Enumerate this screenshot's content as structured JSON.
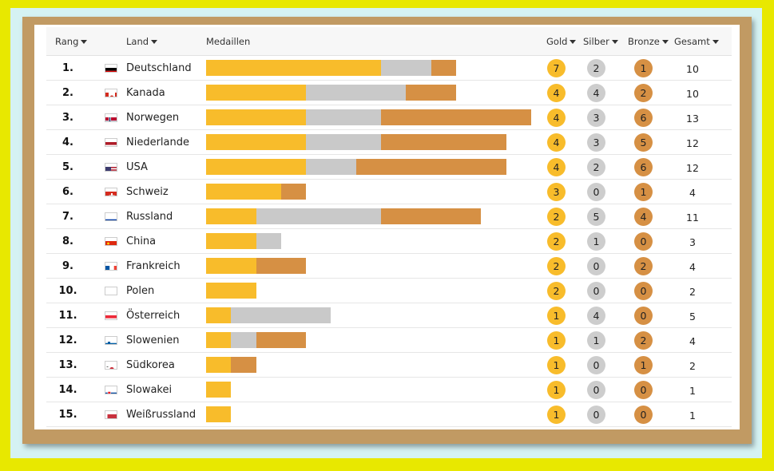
{
  "header": {
    "rang": "Rang",
    "land": "Land",
    "medaillen": "Medaillen",
    "gold": "Gold",
    "silber": "Silber",
    "bronze": "Bronze",
    "gesamt": "Gesamt"
  },
  "colors": {
    "gold": "#f8bc2b",
    "silver": "#c9c9c9",
    "bronze": "#d69044"
  },
  "rows": [
    {
      "rank": "1.",
      "country": "Deutschland",
      "flag": "germany-flag-icon",
      "gold": 7,
      "silver": 2,
      "bronze": 1,
      "total": 10
    },
    {
      "rank": "2.",
      "country": "Kanada",
      "flag": "canada-flag-icon",
      "gold": 4,
      "silver": 4,
      "bronze": 2,
      "total": 10
    },
    {
      "rank": "3.",
      "country": "Norwegen",
      "flag": "norway-flag-icon",
      "gold": 4,
      "silver": 3,
      "bronze": 6,
      "total": 13
    },
    {
      "rank": "4.",
      "country": "Niederlande",
      "flag": "netherlands-flag-icon",
      "gold": 4,
      "silver": 3,
      "bronze": 5,
      "total": 12
    },
    {
      "rank": "5.",
      "country": "USA",
      "flag": "usa-flag-icon",
      "gold": 4,
      "silver": 2,
      "bronze": 6,
      "total": 12
    },
    {
      "rank": "6.",
      "country": "Schweiz",
      "flag": "switzerland-flag-icon",
      "gold": 3,
      "silver": 0,
      "bronze": 1,
      "total": 4
    },
    {
      "rank": "7.",
      "country": "Russland",
      "flag": "russia-flag-icon",
      "gold": 2,
      "silver": 5,
      "bronze": 4,
      "total": 11
    },
    {
      "rank": "8.",
      "country": "China",
      "flag": "china-flag-icon",
      "gold": 2,
      "silver": 1,
      "bronze": 0,
      "total": 3
    },
    {
      "rank": "9.",
      "country": "Frankreich",
      "flag": "france-flag-icon",
      "gold": 2,
      "silver": 0,
      "bronze": 2,
      "total": 4
    },
    {
      "rank": "10.",
      "country": "Polen",
      "flag": "poland-flag-icon",
      "gold": 2,
      "silver": 0,
      "bronze": 0,
      "total": 2
    },
    {
      "rank": "11.",
      "country": "Österreich",
      "flag": "austria-flag-icon",
      "gold": 1,
      "silver": 4,
      "bronze": 0,
      "total": 5
    },
    {
      "rank": "12.",
      "country": "Slowenien",
      "flag": "slovenia-flag-icon",
      "gold": 1,
      "silver": 1,
      "bronze": 2,
      "total": 4
    },
    {
      "rank": "13.",
      "country": "Südkorea",
      "flag": "south-korea-flag-icon",
      "gold": 1,
      "silver": 0,
      "bronze": 1,
      "total": 2
    },
    {
      "rank": "14.",
      "country": "Slowakei",
      "flag": "slovakia-flag-icon",
      "gold": 1,
      "silver": 0,
      "bronze": 0,
      "total": 1
    },
    {
      "rank": "15.",
      "country": "Weißrussland",
      "flag": "belarus-flag-icon",
      "gold": 1,
      "silver": 0,
      "bronze": 0,
      "total": 1
    }
  ]
}
